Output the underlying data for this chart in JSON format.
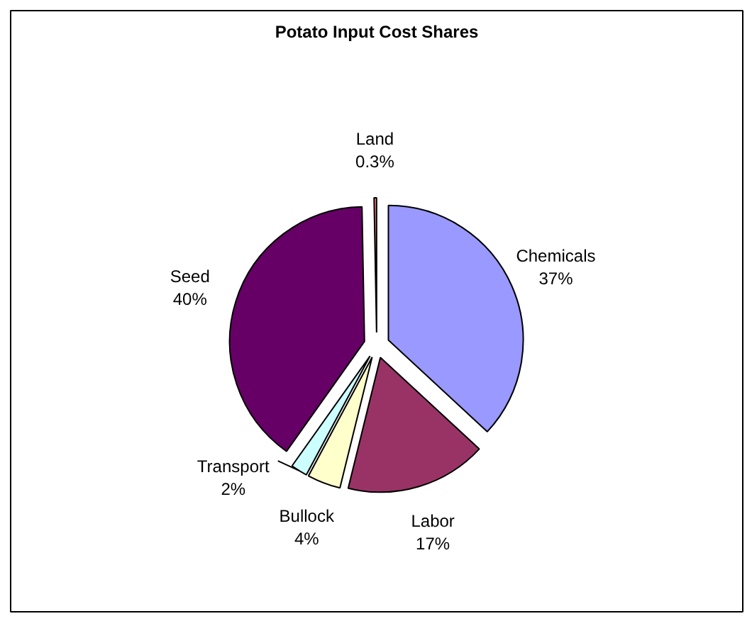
{
  "chart_data": {
    "type": "pie",
    "title": "Potato Input Cost Shares",
    "categories": [
      "Chemicals",
      "Labor",
      "Bullock",
      "Transport",
      "Seed",
      "Land"
    ],
    "values": [
      37,
      17,
      4,
      2,
      40,
      0.3
    ],
    "value_labels": [
      "37%",
      "17%",
      "4%",
      "2%",
      "40%",
      "0.3%"
    ],
    "colors": [
      "#9999ff",
      "#993366",
      "#ffffcc",
      "#ccffff",
      "#660066",
      "#ff8080"
    ]
  }
}
